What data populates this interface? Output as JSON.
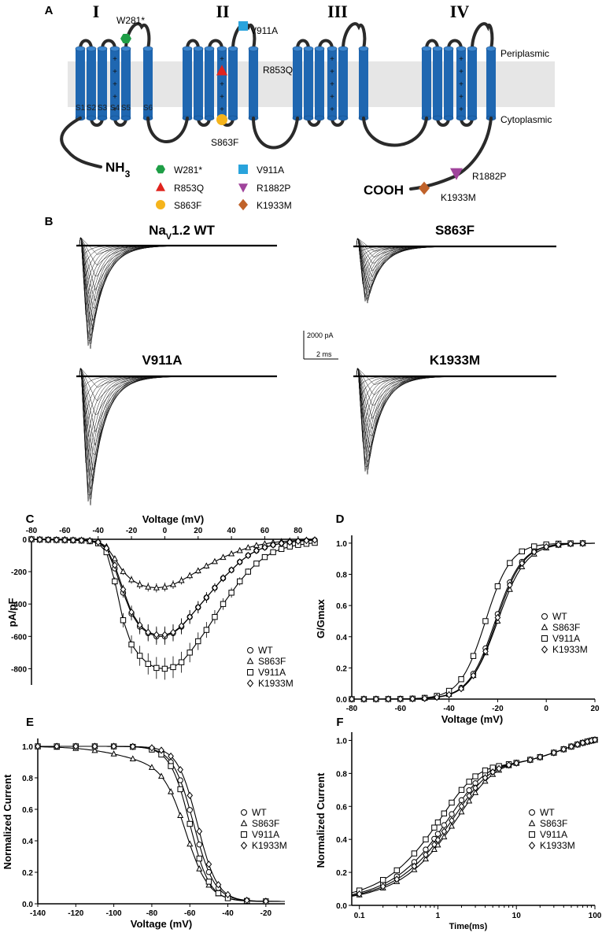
{
  "figure": {
    "panel_labels": [
      "A",
      "B",
      "C",
      "D",
      "E",
      "F"
    ]
  },
  "panel_a": {
    "domains": [
      "I",
      "II",
      "III",
      "IV"
    ],
    "membrane_labels": [
      "Periplasmic",
      "Cytoplasmic"
    ],
    "segment_labels": [
      "S1",
      "S2",
      "S3",
      "S4",
      "S5",
      "S6"
    ],
    "n_term": "NH",
    "n_term_sub": "3",
    "c_term": "COOH",
    "mutations": [
      {
        "name": "W281*",
        "marker": "hexagon",
        "color": "#1e9e46"
      },
      {
        "name": "V911A",
        "marker": "square",
        "color": "#29a3dc"
      },
      {
        "name": "R853Q",
        "marker": "triangle-up",
        "color": "#e0241e"
      },
      {
        "name": "R1882P",
        "marker": "triangle-down",
        "color": "#a0449c"
      },
      {
        "name": "S863F",
        "marker": "circle",
        "color": "#f5b41c"
      },
      {
        "name": "K1933M",
        "marker": "diamond",
        "color": "#c0622a"
      }
    ],
    "colors": {
      "helix": "#1f67b1",
      "membrane": "#e6e6e6",
      "loop": "#2a2a2a"
    }
  },
  "panel_b": {
    "traces": [
      {
        "title": "Na",
        "sub": "V",
        "suffix": "1.2 WT",
        "peak_rel": 1.0
      },
      {
        "title": "S863F",
        "sub": "",
        "suffix": "",
        "peak_rel": 0.55
      },
      {
        "title": "V911A",
        "sub": "",
        "suffix": "",
        "peak_rel": 1.25
      },
      {
        "title": "K1933M",
        "sub": "",
        "suffix": "",
        "peak_rel": 0.95
      }
    ],
    "scale_bar": {
      "current": "2000 pA",
      "time": "2 ms"
    }
  },
  "chart_data": [
    {
      "panel": "C",
      "type": "line",
      "title": "",
      "xlabel": "Voltage (mV)",
      "ylabel": "pA/pF",
      "xlim": [
        -80,
        90
      ],
      "ylim": [
        -900,
        0
      ],
      "xticks": [
        -80,
        -60,
        -40,
        -20,
        0,
        20,
        40,
        60,
        80
      ],
      "yticks": [
        0,
        -200,
        -400,
        -600,
        -800
      ],
      "legend_position": "bottom-right",
      "series": [
        {
          "name": "WT",
          "marker": "circle",
          "x": [
            -80,
            -75,
            -70,
            -65,
            -60,
            -55,
            -50,
            -45,
            -40,
            -35,
            -30,
            -25,
            -20,
            -15,
            -10,
            -5,
            0,
            5,
            10,
            15,
            20,
            25,
            30,
            35,
            40,
            45,
            50,
            55,
            60,
            65,
            70,
            75,
            80,
            85,
            90
          ],
          "y": [
            0,
            -2,
            -3,
            -4,
            -5,
            -6,
            -7,
            -10,
            -20,
            -60,
            -180,
            -330,
            -460,
            -540,
            -580,
            -600,
            -600,
            -580,
            -540,
            -480,
            -420,
            -360,
            -300,
            -240,
            -190,
            -140,
            -100,
            -70,
            -50,
            -35,
            -25,
            -18,
            -12,
            -8,
            -5
          ]
        },
        {
          "name": "S863F",
          "marker": "triangle",
          "x": [
            -80,
            -75,
            -70,
            -65,
            -60,
            -55,
            -50,
            -45,
            -40,
            -35,
            -30,
            -25,
            -20,
            -15,
            -10,
            -5,
            0,
            5,
            10,
            15,
            20,
            25,
            30,
            35,
            40,
            45,
            50,
            55,
            60,
            65,
            70,
            75,
            80,
            85,
            90
          ],
          "y": [
            0,
            -1,
            -2,
            -2,
            -3,
            -4,
            -5,
            -7,
            -15,
            -45,
            -120,
            -200,
            -250,
            -280,
            -295,
            -300,
            -295,
            -280,
            -255,
            -225,
            -195,
            -165,
            -138,
            -112,
            -90,
            -70,
            -52,
            -38,
            -28,
            -20,
            -14,
            -10,
            -7,
            -5,
            -3
          ]
        },
        {
          "name": "V911A",
          "marker": "square",
          "x": [
            -80,
            -75,
            -70,
            -65,
            -60,
            -55,
            -50,
            -45,
            -40,
            -35,
            -30,
            -25,
            -20,
            -15,
            -10,
            -5,
            0,
            5,
            10,
            15,
            20,
            25,
            30,
            35,
            40,
            45,
            50,
            55,
            60,
            65,
            70,
            75,
            80,
            85,
            90
          ],
          "y": [
            0,
            -2,
            -3,
            -4,
            -5,
            -6,
            -8,
            -12,
            -25,
            -80,
            -260,
            -500,
            -650,
            -720,
            -770,
            -795,
            -800,
            -790,
            -760,
            -700,
            -630,
            -560,
            -480,
            -400,
            -330,
            -260,
            -200,
            -150,
            -110,
            -80,
            -60,
            -45,
            -35,
            -28,
            -22
          ]
        },
        {
          "name": "K1933M",
          "marker": "diamond",
          "x": [
            -80,
            -75,
            -70,
            -65,
            -60,
            -55,
            -50,
            -45,
            -40,
            -35,
            -30,
            -25,
            -20,
            -15,
            -10,
            -5,
            0,
            5,
            10,
            15,
            20,
            25,
            30,
            35,
            40,
            45,
            50,
            55,
            60,
            65,
            70,
            75,
            80,
            85,
            90
          ],
          "y": [
            0,
            -2,
            -3,
            -4,
            -5,
            -6,
            -7,
            -10,
            -18,
            -55,
            -160,
            -310,
            -450,
            -530,
            -575,
            -590,
            -590,
            -575,
            -535,
            -480,
            -420,
            -360,
            -300,
            -240,
            -190,
            -140,
            -100,
            -70,
            -50,
            -35,
            -25,
            -18,
            -12,
            -8,
            -5
          ]
        }
      ]
    },
    {
      "panel": "D",
      "type": "line",
      "title": "",
      "xlabel": "Voltage (mV)",
      "ylabel": "G/Gmax",
      "xlim": [
        -80,
        20
      ],
      "ylim": [
        0,
        1.05
      ],
      "xticks": [
        -80,
        -60,
        -40,
        -20,
        0,
        20
      ],
      "yticks": [
        0.0,
        0.2,
        0.4,
        0.6,
        0.8,
        1.0
      ],
      "legend_position": "right",
      "series": [
        {
          "name": "WT",
          "marker": "circle",
          "v_half": -21,
          "slope": 5.5
        },
        {
          "name": "S863F",
          "marker": "triangle",
          "v_half": -20,
          "slope": 5.8
        },
        {
          "name": "V911A",
          "marker": "square",
          "v_half": -25,
          "slope": 5.2
        },
        {
          "name": "K1933M",
          "marker": "diamond",
          "v_half": -20.5,
          "slope": 5.5
        }
      ],
      "x": [
        -80,
        -75,
        -70,
        -65,
        -60,
        -55,
        -50,
        -45,
        -40,
        -35,
        -30,
        -25,
        -20,
        -15,
        -10,
        -5,
        0,
        5,
        10,
        15
      ]
    },
    {
      "panel": "E",
      "type": "line",
      "title": "",
      "xlabel": "Voltage (mV)",
      "ylabel": "Normalized Current",
      "xlim": [
        -140,
        -10
      ],
      "ylim": [
        0,
        1.05
      ],
      "xticks": [
        -140,
        -120,
        -100,
        -80,
        -60,
        -40,
        -20
      ],
      "yticks": [
        0.0,
        0.2,
        0.4,
        0.6,
        0.8,
        1.0
      ],
      "legend_position": "right",
      "series": [
        {
          "name": "WT",
          "marker": "circle",
          "v_half": -58,
          "slope": 5.5,
          "slow": 0
        },
        {
          "name": "S863F",
          "marker": "triangle",
          "v_half": -62,
          "slope": 6,
          "slow": 0.12
        },
        {
          "name": "V911A",
          "marker": "square",
          "v_half": -60,
          "slope": 5.2,
          "slow": 0
        },
        {
          "name": "K1933M",
          "marker": "diamond",
          "v_half": -56,
          "slope": 5.2,
          "slow": 0
        }
      ],
      "x": [
        -140,
        -130,
        -120,
        -110,
        -100,
        -90,
        -80,
        -75,
        -70,
        -65,
        -60,
        -55,
        -50,
        -45,
        -40,
        -30,
        -20
      ]
    },
    {
      "panel": "F",
      "type": "line",
      "title": "",
      "xlabel": "Time(ms)",
      "ylabel": "Normalized Current",
      "xscale": "log",
      "xlim": [
        0.08,
        100
      ],
      "ylim": [
        0,
        1.05
      ],
      "xticks": [
        0.1,
        1,
        10,
        100
      ],
      "yticks": [
        0.0,
        0.2,
        0.4,
        0.6,
        0.8,
        1.0
      ],
      "legend_position": "right",
      "series": [
        {
          "name": "WT",
          "marker": "circle",
          "tau": 1.4
        },
        {
          "name": "S863F",
          "marker": "triangle",
          "tau": 1.8
        },
        {
          "name": "V911A",
          "marker": "square",
          "tau": 1.1
        },
        {
          "name": "K1933M",
          "marker": "diamond",
          "tau": 1.6
        }
      ],
      "x": [
        0.1,
        0.2,
        0.3,
        0.5,
        0.7,
        0.9,
        1,
        1.2,
        1.5,
        2,
        2.5,
        3,
        4,
        5,
        6,
        8,
        10,
        15,
        20,
        30,
        40,
        50,
        60,
        70,
        80,
        90,
        100
      ]
    }
  ]
}
